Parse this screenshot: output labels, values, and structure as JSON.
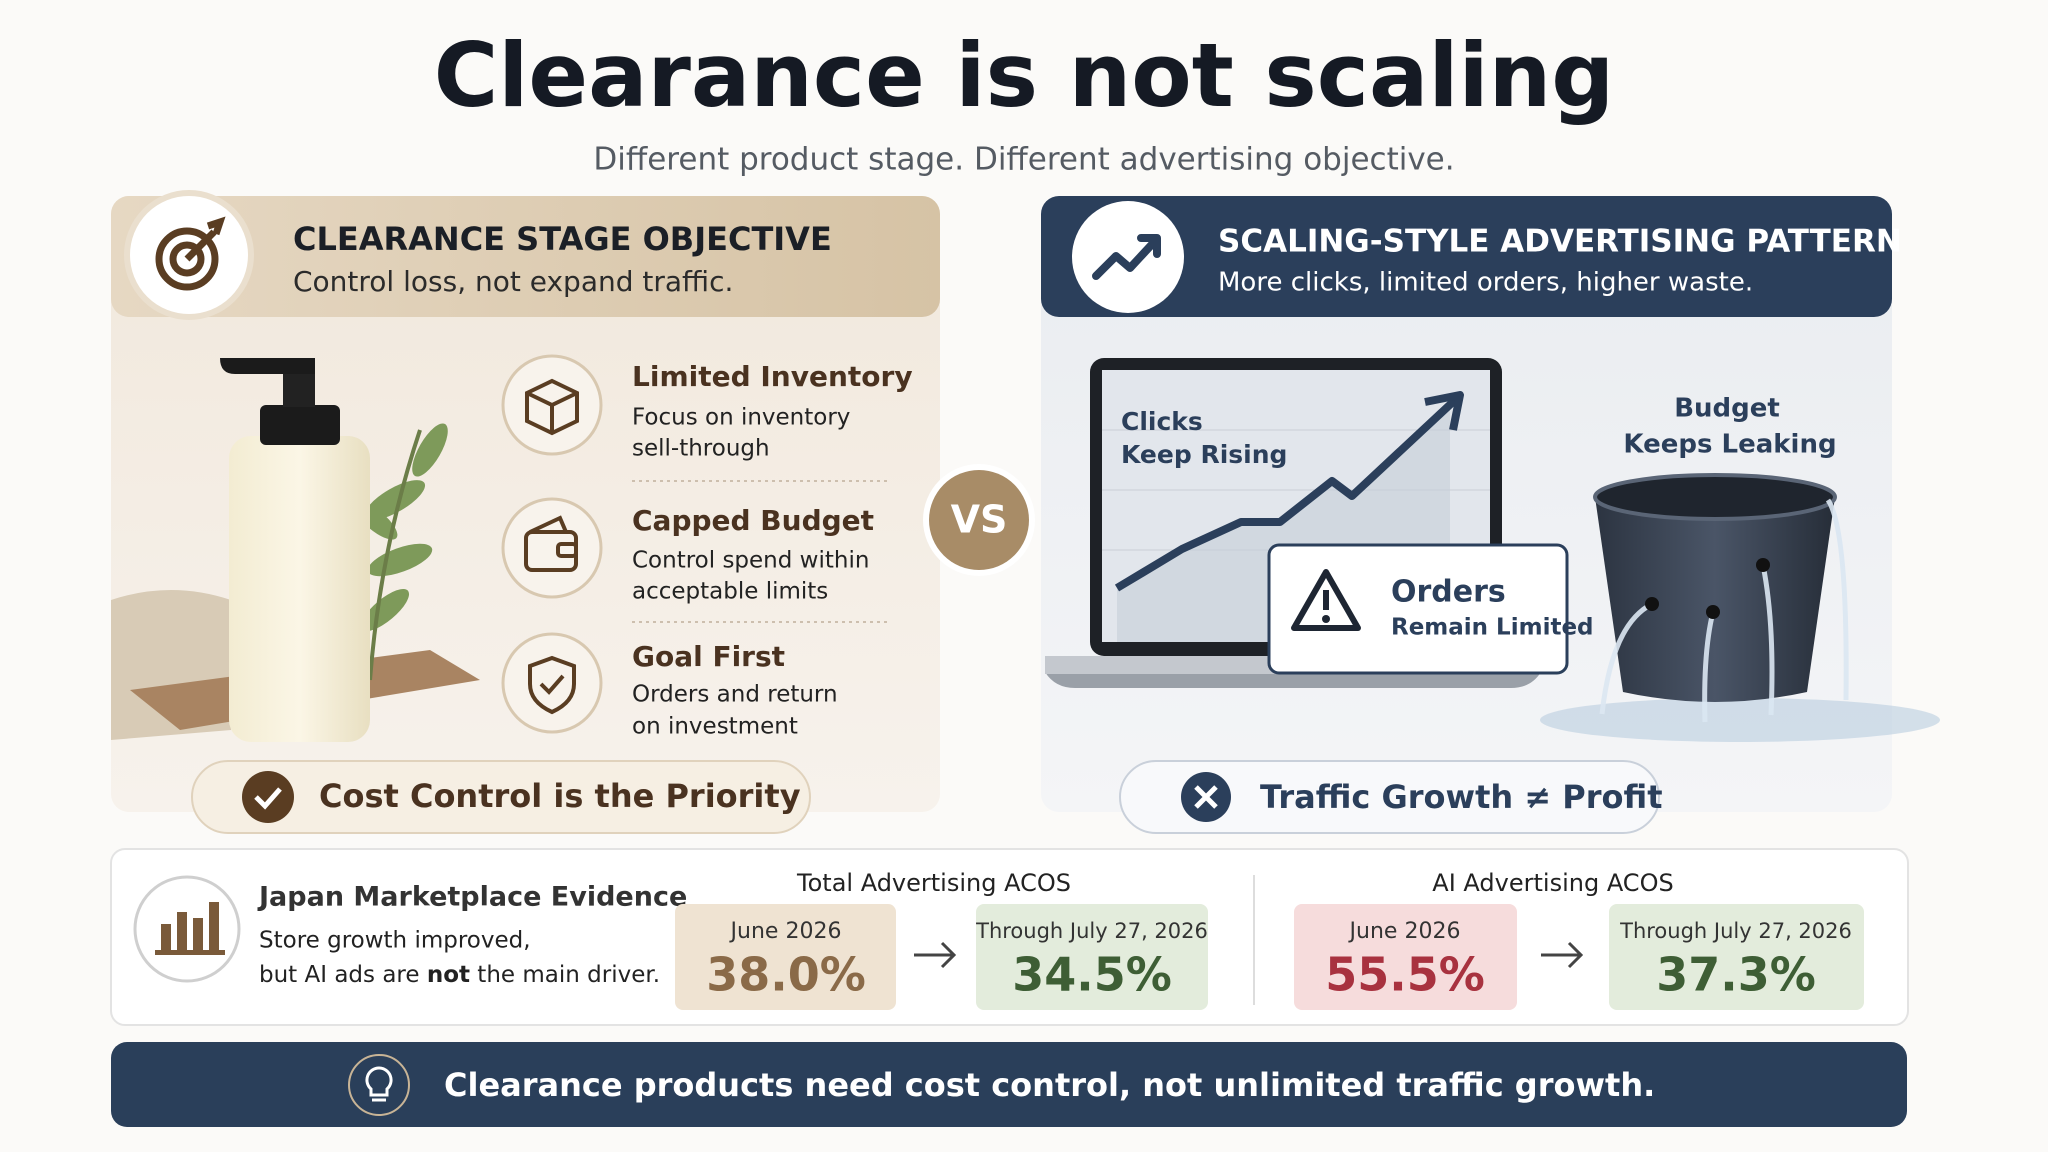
{
  "header": {
    "title": "Clearance is not scaling",
    "subtitle": "Different product stage. Different advertising objective."
  },
  "left_panel": {
    "title": "CLEARANCE STAGE OBJECTIVE",
    "subtitle": "Control loss, not expand traffic.",
    "items": [
      {
        "title": "Limited Inventory",
        "description": [
          "Focus on inventory",
          "sell-through"
        ]
      },
      {
        "title": "Capped Budget",
        "description": [
          "Control spend within",
          "acceptable limits"
        ]
      },
      {
        "title": "Goal First",
        "description": [
          "Orders and return",
          "on investment"
        ]
      }
    ],
    "callout": "Cost Control is the Priority"
  },
  "vs": "VS",
  "right_panel": {
    "title": "SCALING-STYLE ADVERTISING PATTERN",
    "subtitle": "More clicks, limited orders, higher waste.",
    "chart_label": [
      "Clicks",
      "Keep Rising"
    ],
    "alert": {
      "title": "Orders",
      "text": "Remain Limited"
    },
    "bucket_label": [
      "Budget",
      "Keeps Leaking"
    ],
    "callout": "Traffic Growth ≠ Profit"
  },
  "evidence": {
    "title": "Japan Marketplace Evidence",
    "line1": "Store growth improved,",
    "line2": {
      "before": "but AI ads are ",
      "emphasis": "not",
      "after": " the main driver."
    },
    "metrics": [
      {
        "title": "Total Advertising ACOS",
        "before": {
          "period": "June 2026",
          "value": "38.0%"
        },
        "after": {
          "period": "Through July 27, 2026",
          "value": "34.5%"
        }
      },
      {
        "title": "AI Advertising ACOS",
        "before": {
          "period": "June 2026",
          "value": "55.5%"
        },
        "after": {
          "period": "Through July 27, 2026",
          "value": "37.3%"
        }
      }
    ]
  },
  "footer": "Clearance products need cost control, not unlimited traffic growth."
}
